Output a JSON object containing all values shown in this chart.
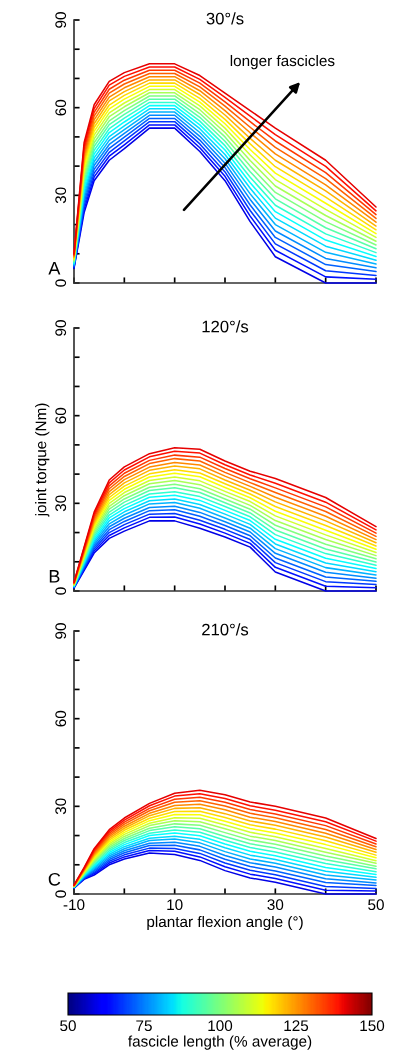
{
  "chart_data": [
    {
      "type": "line",
      "title": "30°/s",
      "annotations": [
        "A",
        "longer fascicles"
      ],
      "tick_labels": "y",
      "xlim": [
        -10,
        50
      ],
      "ylim": [
        0,
        90
      ],
      "xticks": [
        -10,
        {
          "value": 0,
          "label": null
        },
        10,
        {
          "value": 20,
          "label": null
        },
        30,
        {
          "value": 40,
          "label": null
        },
        50
      ],
      "yticks": [
        0,
        {
          "value": 10,
          "label": null
        },
        {
          "value": 20,
          "label": null
        },
        30,
        {
          "value": 40,
          "label": null
        },
        {
          "value": 50,
          "label": null
        },
        60,
        {
          "value": 70,
          "label": null
        },
        {
          "value": 80,
          "label": null
        },
        90
      ],
      "x": [
        -10,
        -8,
        -6,
        -3,
        0,
        5,
        10,
        15,
        20,
        25,
        30,
        40,
        50
      ],
      "series": [
        {
          "color": "#0000e6",
          "values": [
            5,
            24,
            35,
            42,
            46,
            53,
            53,
            45,
            35,
            21,
            9,
            0,
            0
          ]
        },
        {
          "color": "#000fff",
          "values": [
            5.3,
            25.2,
            36.3,
            43.4,
            47.3,
            54.1,
            54.1,
            46.3,
            36.5,
            22.9,
            11.2,
            2.1,
            1.3
          ]
        },
        {
          "color": "#0038ff",
          "values": [
            5.5,
            26.4,
            37.6,
            44.7,
            48.6,
            55.2,
            55.2,
            47.6,
            38,
            24.8,
            13.4,
            4.2,
            2.6
          ]
        },
        {
          "color": "#0061ff",
          "values": [
            5.8,
            27.6,
            38.9,
            46.1,
            49.9,
            56.3,
            56.3,
            48.9,
            39.5,
            26.7,
            15.6,
            6.3,
            3.9
          ]
        },
        {
          "color": "#008aff",
          "values": [
            6,
            28.8,
            40.2,
            47.4,
            51.2,
            57.4,
            57.4,
            50.2,
            41,
            28.6,
            17.8,
            8.4,
            5.2
          ]
        },
        {
          "color": "#00b3ff",
          "values": [
            6.3,
            30,
            41.5,
            48.8,
            52.5,
            58.5,
            58.5,
            51.5,
            42.5,
            30.5,
            20,
            10.5,
            6.5
          ]
        },
        {
          "color": "#00dbff",
          "values": [
            6.5,
            31.2,
            42.8,
            50.1,
            53.8,
            59.6,
            59.6,
            52.8,
            44,
            32.4,
            22.2,
            12.6,
            7.8
          ]
        },
        {
          "color": "#05ffff",
          "values": [
            6.8,
            32.4,
            44.1,
            51.5,
            55.1,
            60.7,
            60.7,
            54.1,
            45.5,
            34.3,
            24.4,
            14.7,
            9.1
          ]
        },
        {
          "color": "#2effd1",
          "values": [
            7,
            33.6,
            45.4,
            52.8,
            56.4,
            61.8,
            61.8,
            55.4,
            47,
            36.2,
            26.6,
            16.8,
            10.4
          ]
        },
        {
          "color": "#57ffa8",
          "values": [
            7.3,
            34.8,
            46.7,
            54.2,
            57.7,
            62.9,
            62.9,
            56.7,
            48.5,
            38.1,
            28.8,
            18.9,
            11.7
          ]
        },
        {
          "color": "#80ff80",
          "values": [
            7.5,
            36,
            48,
            55.5,
            59,
            64,
            64,
            58,
            50,
            40,
            31,
            21,
            13
          ]
        },
        {
          "color": "#a8ff57",
          "values": [
            7.8,
            37.2,
            49.3,
            56.9,
            60.3,
            65.1,
            65.1,
            59.3,
            51.5,
            41.9,
            33.2,
            23.1,
            14.3
          ]
        },
        {
          "color": "#d1ff2e",
          "values": [
            8,
            38.4,
            50.6,
            58.2,
            61.6,
            66.2,
            66.2,
            60.6,
            53,
            43.8,
            35.4,
            25.2,
            15.6
          ]
        },
        {
          "color": "#faff05",
          "values": [
            8.3,
            39.6,
            51.9,
            59.6,
            62.9,
            67.3,
            67.3,
            61.9,
            54.5,
            45.7,
            37.6,
            27.3,
            16.9
          ]
        },
        {
          "color": "#ffdb00",
          "values": [
            8.5,
            40.8,
            53.2,
            60.9,
            64.2,
            68.4,
            68.4,
            63.2,
            56,
            47.6,
            39.8,
            29.4,
            18.2
          ]
        },
        {
          "color": "#ffb300",
          "values": [
            8.8,
            42,
            54.5,
            62.3,
            65.5,
            69.5,
            69.5,
            64.5,
            57.5,
            49.5,
            42,
            31.5,
            19.5
          ]
        },
        {
          "color": "#ff8a00",
          "values": [
            9,
            43.2,
            55.8,
            63.6,
            66.8,
            70.6,
            70.6,
            65.8,
            59,
            51.4,
            44.2,
            33.6,
            20.8
          ]
        },
        {
          "color": "#ff6100",
          "values": [
            9.3,
            44.4,
            57.1,
            65,
            68.1,
            71.7,
            71.7,
            67.1,
            60.5,
            53.3,
            46.4,
            35.7,
            22.1
          ]
        },
        {
          "color": "#ff3800",
          "values": [
            9.5,
            45.6,
            58.4,
            66.3,
            69.4,
            72.8,
            72.8,
            68.4,
            62,
            55.2,
            48.6,
            37.8,
            23.4
          ]
        },
        {
          "color": "#ff0f00",
          "values": [
            9.8,
            46.8,
            59.7,
            67.7,
            70.7,
            73.9,
            73.9,
            69.7,
            63.5,
            57.1,
            50.8,
            39.9,
            24.7
          ]
        },
        {
          "color": "#e60000",
          "values": [
            10,
            48,
            61,
            69,
            72,
            75,
            75,
            71,
            65,
            59,
            53,
            42,
            26
          ]
        }
      ]
    },
    {
      "type": "line",
      "title": "120°/s",
      "ylabel": "joint torque (Nm)",
      "annotations": [
        "B"
      ],
      "tick_labels": "y",
      "xlim": [
        -10,
        50
      ],
      "ylim": [
        0,
        90
      ],
      "xticks": [
        -10,
        {
          "value": 0,
          "label": null
        },
        10,
        {
          "value": 20,
          "label": null
        },
        30,
        {
          "value": 40,
          "label": null
        },
        50
      ],
      "yticks": [
        0,
        {
          "value": 10,
          "label": null
        },
        {
          "value": 20,
          "label": null
        },
        30,
        {
          "value": 40,
          "label": null
        },
        {
          "value": 50,
          "label": null
        },
        60,
        {
          "value": 70,
          "label": null
        },
        {
          "value": 80,
          "label": null
        },
        90
      ],
      "x": [
        -10,
        -8,
        -6,
        -3,
        0,
        5,
        10,
        15,
        20,
        25,
        30,
        40,
        50
      ],
      "series": [
        {
          "color": "#0000e6",
          "values": [
            1,
            7,
            13,
            18,
            20.5,
            24,
            24,
            21.5,
            18.5,
            15,
            6.5,
            0,
            0
          ]
        },
        {
          "color": "#000fff",
          "values": [
            1.1,
            7.4,
            13.7,
            19,
            21.6,
            25.2,
            25.3,
            22.9,
            19.8,
            16.3,
            8.1,
            1.6,
            1.1
          ]
        },
        {
          "color": "#0038ff",
          "values": [
            1.2,
            7.8,
            14.4,
            20,
            22.7,
            26.3,
            26.5,
            24.2,
            21.1,
            17.6,
            9.7,
            3.2,
            2.2
          ]
        },
        {
          "color": "#0061ff",
          "values": [
            1.3,
            8.2,
            15.1,
            21,
            23.8,
            27.5,
            27.8,
            25.6,
            22.4,
            18.9,
            11.3,
            4.8,
            3.3
          ]
        },
        {
          "color": "#008aff",
          "values": [
            1.4,
            8.6,
            15.8,
            22,
            24.9,
            28.6,
            29,
            26.9,
            23.7,
            20.2,
            12.9,
            6.4,
            4.4
          ]
        },
        {
          "color": "#00b3ff",
          "values": [
            1.5,
            9,
            16.5,
            23,
            26,
            29.8,
            30.3,
            28.3,
            25,
            21.5,
            14.5,
            8,
            5.5
          ]
        },
        {
          "color": "#00dbff",
          "values": [
            1.6,
            9.4,
            17.2,
            24,
            27.1,
            30.9,
            31.5,
            29.6,
            26.3,
            22.8,
            16.1,
            9.6,
            6.6
          ]
        },
        {
          "color": "#05ffff",
          "values": [
            1.7,
            9.8,
            17.9,
            25,
            28.2,
            32.1,
            32.8,
            31,
            27.6,
            24.1,
            17.7,
            11.2,
            7.7
          ]
        },
        {
          "color": "#2effd1",
          "values": [
            1.8,
            10.2,
            18.6,
            26,
            29.3,
            33.2,
            34,
            32.3,
            28.9,
            25.4,
            19.3,
            12.8,
            8.8
          ]
        },
        {
          "color": "#57ffa8",
          "values": [
            1.9,
            10.6,
            19.3,
            27,
            30.4,
            34.4,
            35.3,
            33.7,
            30.2,
            26.7,
            20.9,
            14.4,
            9.9
          ]
        },
        {
          "color": "#80ff80",
          "values": [
            2,
            11,
            20,
            28,
            31.5,
            35.5,
            36.5,
            35,
            31.5,
            28,
            22.5,
            16,
            11
          ]
        },
        {
          "color": "#a8ff57",
          "values": [
            2.1,
            11.4,
            20.7,
            29,
            32.6,
            36.7,
            37.8,
            36.4,
            32.8,
            29.3,
            24.1,
            17.6,
            12.1
          ]
        },
        {
          "color": "#d1ff2e",
          "values": [
            2.2,
            11.8,
            21.4,
            30,
            33.7,
            37.8,
            39,
            37.7,
            34.1,
            30.6,
            25.7,
            19.2,
            13.2
          ]
        },
        {
          "color": "#faff05",
          "values": [
            2.3,
            12.2,
            22.1,
            31,
            34.8,
            39,
            40.3,
            39.1,
            35.4,
            31.9,
            27.3,
            20.8,
            14.3
          ]
        },
        {
          "color": "#ffdb00",
          "values": [
            2.4,
            12.6,
            22.8,
            32,
            35.9,
            40.1,
            41.5,
            40.4,
            36.7,
            33.2,
            28.9,
            22.4,
            15.4
          ]
        },
        {
          "color": "#ffb300",
          "values": [
            2.5,
            13,
            23.5,
            33,
            37,
            41.3,
            42.8,
            41.8,
            38,
            34.5,
            30.5,
            24,
            16.5
          ]
        },
        {
          "color": "#ff8a00",
          "values": [
            2.6,
            13.4,
            24.2,
            34,
            38.1,
            42.4,
            44,
            43.1,
            39.3,
            35.8,
            32.1,
            25.6,
            17.6
          ]
        },
        {
          "color": "#ff6100",
          "values": [
            2.7,
            13.8,
            24.9,
            35,
            39.2,
            43.6,
            45.3,
            44.5,
            40.6,
            37.1,
            33.7,
            27.2,
            18.7
          ]
        },
        {
          "color": "#ff3800",
          "values": [
            2.8,
            14.2,
            25.6,
            36,
            40.3,
            44.7,
            46.5,
            45.8,
            41.9,
            38.4,
            35.3,
            28.8,
            19.8
          ]
        },
        {
          "color": "#ff0f00",
          "values": [
            2.9,
            14.6,
            26.3,
            37,
            41.4,
            45.9,
            47.8,
            47.2,
            43.2,
            39.7,
            36.9,
            30.4,
            20.9
          ]
        },
        {
          "color": "#e60000",
          "values": [
            3,
            15,
            27,
            38,
            42.5,
            47,
            49,
            48.5,
            44.5,
            41,
            38.5,
            32,
            22
          ]
        }
      ]
    },
    {
      "type": "line",
      "title": "210°/s",
      "xlabel": "plantar flexion angle (°)",
      "annotations": [
        "C"
      ],
      "xlim": [
        -10,
        50
      ],
      "ylim": [
        0,
        90
      ],
      "xticks": [
        -10,
        {
          "value": 0,
          "label": null
        },
        10,
        {
          "value": 20,
          "label": null
        },
        30,
        {
          "value": 40,
          "label": null
        },
        50
      ],
      "yticks": [
        0,
        {
          "value": 10,
          "label": null
        },
        {
          "value": 20,
          "label": null
        },
        30,
        {
          "value": 40,
          "label": null
        },
        {
          "value": 50,
          "label": null
        },
        60,
        {
          "value": 70,
          "label": null
        },
        {
          "value": 80,
          "label": null
        },
        90
      ],
      "clabel": "fascicle length (% average)",
      "clim": [
        50,
        150
      ],
      "cticks": [
        50,
        75,
        100,
        125,
        150
      ],
      "x": [
        -10,
        -8,
        -6,
        -3,
        0,
        5,
        10,
        15,
        20,
        25,
        30,
        40,
        50
      ],
      "series": [
        {
          "color": "#0000e6",
          "values": [
            2,
            5,
            6.5,
            10,
            12,
            14,
            13.5,
            11.5,
            8,
            5.5,
            4,
            0,
            0
          ]
        },
        {
          "color": "#000fff",
          "values": [
            2.1,
            5.2,
            7,
            10.6,
            12.7,
            14.9,
            14.6,
            12.7,
            9.3,
            6.8,
            5.3,
            1.3,
            1
          ]
        },
        {
          "color": "#0038ff",
          "values": [
            2.1,
            5.4,
            7.4,
            11.2,
            13.4,
            15.7,
            15.6,
            13.9,
            10.6,
            8.1,
            6.6,
            2.6,
            1.9
          ]
        },
        {
          "color": "#0061ff",
          "values": [
            2.2,
            5.6,
            7.9,
            11.8,
            14.1,
            16.6,
            16.7,
            15.1,
            11.9,
            9.4,
            7.9,
            3.9,
            2.9
          ]
        },
        {
          "color": "#008aff",
          "values": [
            2.2,
            5.8,
            8.3,
            12.4,
            14.8,
            17.4,
            17.7,
            16.3,
            13.2,
            10.7,
            9.2,
            5.2,
            3.8
          ]
        },
        {
          "color": "#00b3ff",
          "values": [
            2.3,
            6,
            8.8,
            13,
            15.5,
            18.3,
            18.8,
            17.5,
            14.5,
            12,
            10.5,
            6.5,
            4.8
          ]
        },
        {
          "color": "#00dbff",
          "values": [
            2.3,
            6.2,
            9.2,
            13.6,
            16.2,
            19.1,
            19.8,
            18.7,
            15.8,
            13.3,
            11.8,
            7.8,
            5.7
          ]
        },
        {
          "color": "#05ffff",
          "values": [
            2.4,
            6.4,
            9.7,
            14.2,
            16.9,
            20,
            20.9,
            19.9,
            17.1,
            14.6,
            13.1,
            9.1,
            6.7
          ]
        },
        {
          "color": "#2effd1",
          "values": [
            2.4,
            6.6,
            10.1,
            14.8,
            17.6,
            20.8,
            21.9,
            21.1,
            18.4,
            15.9,
            14.4,
            10.4,
            7.6
          ]
        },
        {
          "color": "#57ffa8",
          "values": [
            2.5,
            6.8,
            10.6,
            15.4,
            18.3,
            21.7,
            23,
            22.3,
            19.7,
            17.2,
            15.7,
            11.7,
            8.6
          ]
        },
        {
          "color": "#80ff80",
          "values": [
            2.5,
            7,
            11,
            16,
            19,
            22.5,
            24,
            23.5,
            21,
            18.5,
            17,
            13,
            9.5
          ]
        },
        {
          "color": "#a8ff57",
          "values": [
            2.6,
            7.2,
            11.5,
            16.6,
            19.7,
            23.4,
            25.1,
            24.7,
            22.3,
            19.8,
            18.3,
            14.3,
            10.5
          ]
        },
        {
          "color": "#d1ff2e",
          "values": [
            2.6,
            7.4,
            11.9,
            17.2,
            20.4,
            24.2,
            26.1,
            25.9,
            23.6,
            21.1,
            19.6,
            15.6,
            11.4
          ]
        },
        {
          "color": "#faff05",
          "values": [
            2.7,
            7.6,
            12.4,
            17.8,
            21.1,
            25.1,
            27.2,
            27.1,
            24.9,
            22.4,
            20.9,
            16.9,
            12.4
          ]
        },
        {
          "color": "#ffdb00",
          "values": [
            2.7,
            7.8,
            12.8,
            18.4,
            21.8,
            25.9,
            28.2,
            28.3,
            26.2,
            23.7,
            22.2,
            18.2,
            13.3
          ]
        },
        {
          "color": "#ffb300",
          "values": [
            2.8,
            8,
            13.3,
            19,
            22.5,
            26.8,
            29.3,
            29.5,
            27.5,
            25,
            23.5,
            19.5,
            14.3
          ]
        },
        {
          "color": "#ff8a00",
          "values": [
            2.8,
            8.2,
            13.7,
            19.6,
            23.2,
            27.6,
            30.3,
            30.7,
            28.8,
            26.3,
            24.8,
            20.8,
            15.2
          ]
        },
        {
          "color": "#ff6100",
          "values": [
            2.9,
            8.4,
            14.2,
            20.2,
            23.9,
            28.5,
            31.4,
            31.9,
            30.1,
            27.6,
            26.1,
            22.1,
            16.2
          ]
        },
        {
          "color": "#ff3800",
          "values": [
            2.9,
            8.6,
            14.6,
            20.8,
            24.6,
            29.3,
            32.4,
            33.1,
            31.4,
            28.9,
            27.4,
            23.4,
            17.1
          ]
        },
        {
          "color": "#ff0f00",
          "values": [
            3,
            8.8,
            15.1,
            21.4,
            25.3,
            30.2,
            33.5,
            34.3,
            32.7,
            30.2,
            28.7,
            24.7,
            18.1
          ]
        },
        {
          "color": "#e60000",
          "values": [
            3,
            9,
            15.5,
            22,
            26,
            31,
            34.5,
            35.5,
            34,
            31.5,
            30,
            26,
            19
          ]
        }
      ]
    }
  ]
}
